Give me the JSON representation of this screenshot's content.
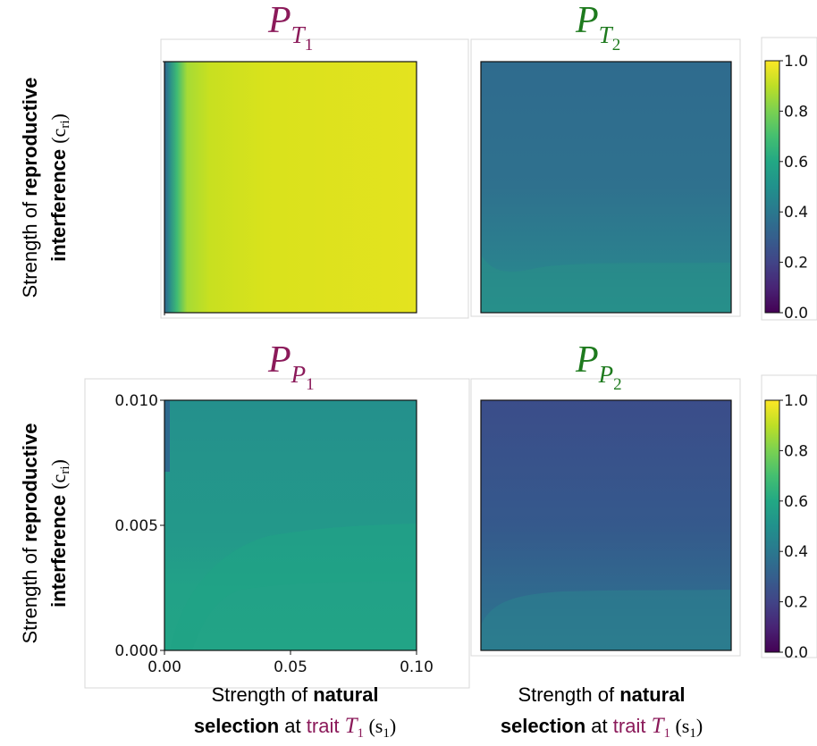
{
  "chart_data": [
    {
      "type": "heatmap",
      "title": "P_T1",
      "title_color": "#8B1A5A",
      "xlabel": "",
      "ylabel": "Strength of reproductive interference (c_ri)",
      "xlim": [
        0,
        0.1
      ],
      "ylim": [
        0,
        0.01
      ],
      "xticks": [],
      "yticks": [],
      "colormap": "viridis",
      "clim": [
        0,
        1
      ],
      "value_profile_by_x": [
        [
          0.0,
          0.3
        ],
        [
          0.002,
          0.55
        ],
        [
          0.005,
          0.75
        ],
        [
          0.01,
          0.85
        ],
        [
          0.02,
          0.9
        ],
        [
          0.04,
          0.92
        ],
        [
          0.1,
          0.93
        ]
      ]
    },
    {
      "type": "heatmap",
      "title": "P_T2",
      "title_color": "#1E7A1E",
      "xlabel": "",
      "ylabel": "",
      "xlim": [
        0,
        0.1
      ],
      "ylim": [
        0,
        0.01
      ],
      "xticks": [],
      "yticks": [],
      "colormap": "viridis",
      "clim": [
        0,
        1
      ],
      "value_profile_by_y": [
        [
          0.0,
          0.52
        ],
        [
          0.002,
          0.5
        ],
        [
          0.005,
          0.44
        ],
        [
          0.01,
          0.37
        ]
      ]
    },
    {
      "type": "heatmap",
      "title": "P_P1",
      "title_color": "#8B1A5A",
      "xlabel": "Strength of natural selection at trait T1 (s1)",
      "ylabel": "Strength of reproductive interference (c_ri)",
      "xlim": [
        0,
        0.1
      ],
      "ylim": [
        0,
        0.01
      ],
      "xticks": [
        "0.00",
        "0.05",
        "0.10"
      ],
      "yticks": [
        "0.000",
        "0.005",
        "0.010"
      ],
      "colormap": "viridis",
      "clim": [
        0,
        1
      ],
      "value_profile_by_y": [
        [
          0.0,
          0.6
        ],
        [
          0.002,
          0.6
        ],
        [
          0.005,
          0.55
        ],
        [
          0.01,
          0.5
        ]
      ]
    },
    {
      "type": "heatmap",
      "title": "P_P2",
      "title_color": "#1E7A1E",
      "xlabel": "Strength of natural selection at trait T1 (s1)",
      "ylabel": "",
      "xlim": [
        0,
        0.1
      ],
      "ylim": [
        0,
        0.01
      ],
      "xticks": [],
      "yticks": [],
      "colormap": "viridis",
      "clim": [
        0,
        1
      ],
      "value_profile_by_y": [
        [
          0.0,
          0.42
        ],
        [
          0.002,
          0.38
        ],
        [
          0.005,
          0.33
        ],
        [
          0.01,
          0.27
        ]
      ]
    }
  ],
  "colorbar": {
    "ticks": [
      "1.0",
      "0.8",
      "0.6",
      "0.4",
      "0.2",
      "0.0"
    ],
    "values": [
      1.0,
      0.8,
      0.6,
      0.4,
      0.2,
      0.0
    ]
  },
  "titles": {
    "t1": {
      "base": "P",
      "sub": "T",
      "subsub": "1"
    },
    "t2": {
      "base": "P",
      "sub": "T",
      "subsub": "2"
    },
    "p1": {
      "base": "P",
      "sub": "P",
      "subsub": "1"
    },
    "p2": {
      "base": "P",
      "sub": "P",
      "subsub": "2"
    }
  },
  "ylabel": {
    "line1_pre": "Strength of ",
    "line1_bold": "reproductive",
    "line2_bold": "interference",
    "line2_sym": "(c",
    "line2_sub": "ri",
    "line2_close": ")"
  },
  "xlabel": {
    "line1_pre": "Strength of ",
    "line1_bold": "natural",
    "line2_bold": "selection",
    "line2_mid": " at ",
    "line2_trait": "trait ",
    "line2_T": "T",
    "line2_Tsub": "1",
    "line2_s": " (s",
    "line2_ssub": "1",
    "line2_close": ")"
  },
  "colors": {
    "magenta": "#8B1A5A",
    "green": "#1E7A1E"
  }
}
